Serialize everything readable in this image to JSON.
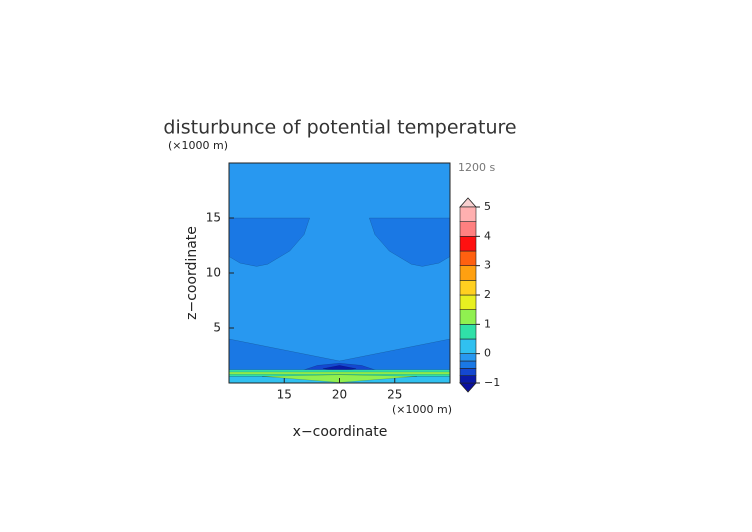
{
  "chart_data": {
    "type": "contour",
    "title": "disturbunce of potential temperature",
    "xlabel": "x−coordinate",
    "ylabel": "z−coordinate",
    "x_unit": "(×1000 m)",
    "y_unit": "(×1000 m)",
    "annotation": "1200 s",
    "xlim": [
      10,
      30
    ],
    "ylim": [
      0,
      20
    ],
    "xticks": [
      15,
      20,
      25
    ],
    "yticks": [
      5,
      10,
      15
    ],
    "colorbar": {
      "levels": [
        -1,
        -0.75,
        -0.5,
        -0.25,
        0,
        0.5,
        1,
        1.5,
        2,
        2.5,
        3,
        3.5,
        4,
        4.5,
        5
      ],
      "colors": [
        "#0a1aa8",
        "#1448d0",
        "#1a78e4",
        "#2898f0",
        "#30c0f0",
        "#30e0a8",
        "#90f050",
        "#e8f020",
        "#ffd020",
        "#ffa010",
        "#ff6010",
        "#ff1010",
        "#ff8080",
        "#ffb0b0"
      ],
      "ticks": [
        {
          "value": -1,
          "label": "−1"
        },
        0,
        1,
        2,
        3,
        4,
        5
      ]
    },
    "regions": [
      {
        "value": -0.1,
        "points": [
          [
            10,
            0
          ],
          [
            10,
            20
          ],
          [
            30,
            20
          ],
          [
            30,
            0
          ]
        ]
      },
      {
        "value": -0.35,
        "points": [
          [
            10,
            15
          ],
          [
            17.3,
            15
          ],
          [
            16.8,
            13.5
          ],
          [
            15.5,
            12
          ],
          [
            13.5,
            10.8
          ],
          [
            12.5,
            10.6
          ],
          [
            11,
            10.9
          ],
          [
            10,
            11.5
          ]
        ]
      },
      {
        "value": -0.35,
        "points": [
          [
            30,
            15
          ],
          [
            22.7,
            15
          ],
          [
            23.2,
            13.5
          ],
          [
            24.5,
            12
          ],
          [
            26.5,
            10.8
          ],
          [
            27.5,
            10.6
          ],
          [
            29,
            10.9
          ],
          [
            30,
            11.5
          ]
        ]
      },
      {
        "value": -0.35,
        "points": [
          [
            10,
            0
          ],
          [
            10,
            4
          ],
          [
            15,
            3
          ],
          [
            20,
            2
          ],
          [
            25,
            3
          ],
          [
            30,
            4
          ],
          [
            30,
            0
          ]
        ]
      },
      {
        "value": -0.6,
        "points": [
          [
            16.5,
            1.1
          ],
          [
            18,
            1.6
          ],
          [
            20,
            1.8
          ],
          [
            22,
            1.6
          ],
          [
            23.5,
            1.1
          ],
          [
            20,
            0.9
          ]
        ]
      },
      {
        "value": -0.85,
        "points": [
          [
            18.5,
            1.3
          ],
          [
            20,
            1.6
          ],
          [
            21.5,
            1.3
          ],
          [
            20,
            1.1
          ]
        ]
      },
      {
        "value": 0.2,
        "points": [
          [
            10,
            0
          ],
          [
            10,
            0.6
          ],
          [
            30,
            0.6
          ],
          [
            30,
            0
          ]
        ]
      },
      {
        "value": 0.7,
        "points": [
          [
            10,
            0.6
          ],
          [
            10,
            1.2
          ],
          [
            30,
            1.2
          ],
          [
            30,
            0.6
          ]
        ]
      },
      {
        "value": 1.2,
        "points": [
          [
            10,
            0.8
          ],
          [
            10,
            1.0
          ],
          [
            30,
            1.0
          ],
          [
            30,
            0.8
          ]
        ]
      },
      {
        "value": 1.2,
        "points": [
          [
            13,
            0.6
          ],
          [
            20,
            0.75
          ],
          [
            27,
            0.6
          ],
          [
            20,
            0.05
          ]
        ]
      }
    ]
  }
}
